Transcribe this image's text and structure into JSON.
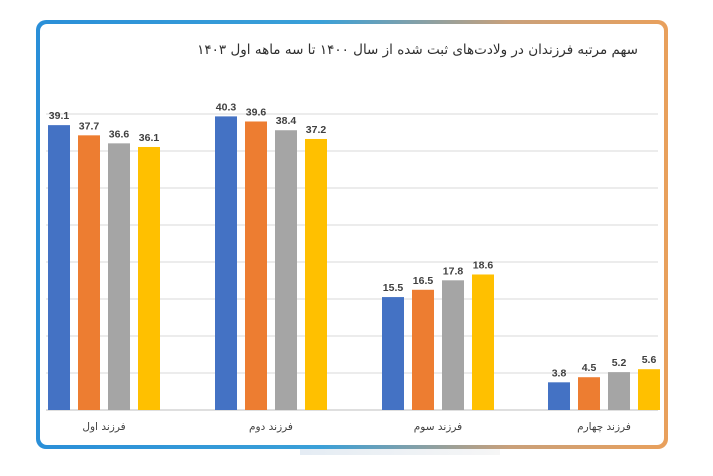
{
  "chart_data": {
    "type": "bar",
    "title": "سهم مرتبه فرزندان در ولادت‌های ثبت شده از سال ۱۴۰۰ تا سه ماهه اول ۱۴۰۳",
    "categories": [
      "فرزند اول",
      "فرزند دوم",
      "فرزند سوم",
      "فرزند چهارم"
    ],
    "series": [
      {
        "values": [
          39.1,
          40.3,
          15.5,
          3.8
        ],
        "color": "#4472c4"
      },
      {
        "values": [
          37.7,
          39.6,
          16.5,
          4.5
        ],
        "color": "#ed7d31"
      },
      {
        "values": [
          36.6,
          38.4,
          17.8,
          5.2
        ],
        "color": "#a5a5a5"
      },
      {
        "values": [
          36.1,
          37.2,
          18.6,
          5.6
        ],
        "color": "#ffc000"
      }
    ],
    "ylim": [
      0,
      42
    ],
    "grid": true,
    "legend": "none"
  }
}
